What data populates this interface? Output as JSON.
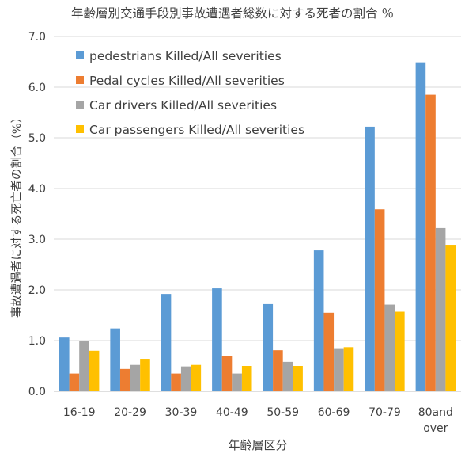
{
  "chart_data": {
    "type": "bar",
    "title": "年齢層別交通手段別事故遭遇者総数に対する死者の割合 ％",
    "xlabel": "年齢層区分",
    "ylabel": "事故遭遇者に対する死亡者の割合（%）",
    "ylim": [
      0,
      7
    ],
    "yticks": [
      "0.0",
      "1.0",
      "2.0",
      "3.0",
      "4.0",
      "5.0",
      "6.0",
      "7.0"
    ],
    "grid": true,
    "legend_position": "top-left",
    "categories": [
      "16-19",
      "20-29",
      "30-39",
      "40-49",
      "50-59",
      "60-69",
      "70-79",
      "80and over"
    ],
    "series": [
      {
        "name": "pedestrians Killed/All severities",
        "color": "#5B9BD5",
        "values": [
          1.06,
          1.24,
          1.92,
          2.03,
          1.72,
          2.78,
          5.22,
          6.49
        ]
      },
      {
        "name": "Pedal cycles Killed/All severities",
        "color": "#ED7D31",
        "values": [
          0.35,
          0.44,
          0.35,
          0.69,
          0.81,
          1.55,
          3.59,
          5.85
        ]
      },
      {
        "name": "Car drivers Killed/All severities",
        "color": "#A5A5A5",
        "values": [
          1.0,
          0.52,
          0.49,
          0.35,
          0.58,
          0.85,
          1.71,
          3.22
        ]
      },
      {
        "name": "Car passengers Killed/All severities",
        "color": "#FFC000",
        "values": [
          0.8,
          0.64,
          0.52,
          0.5,
          0.5,
          0.87,
          1.57,
          2.89
        ]
      }
    ]
  }
}
